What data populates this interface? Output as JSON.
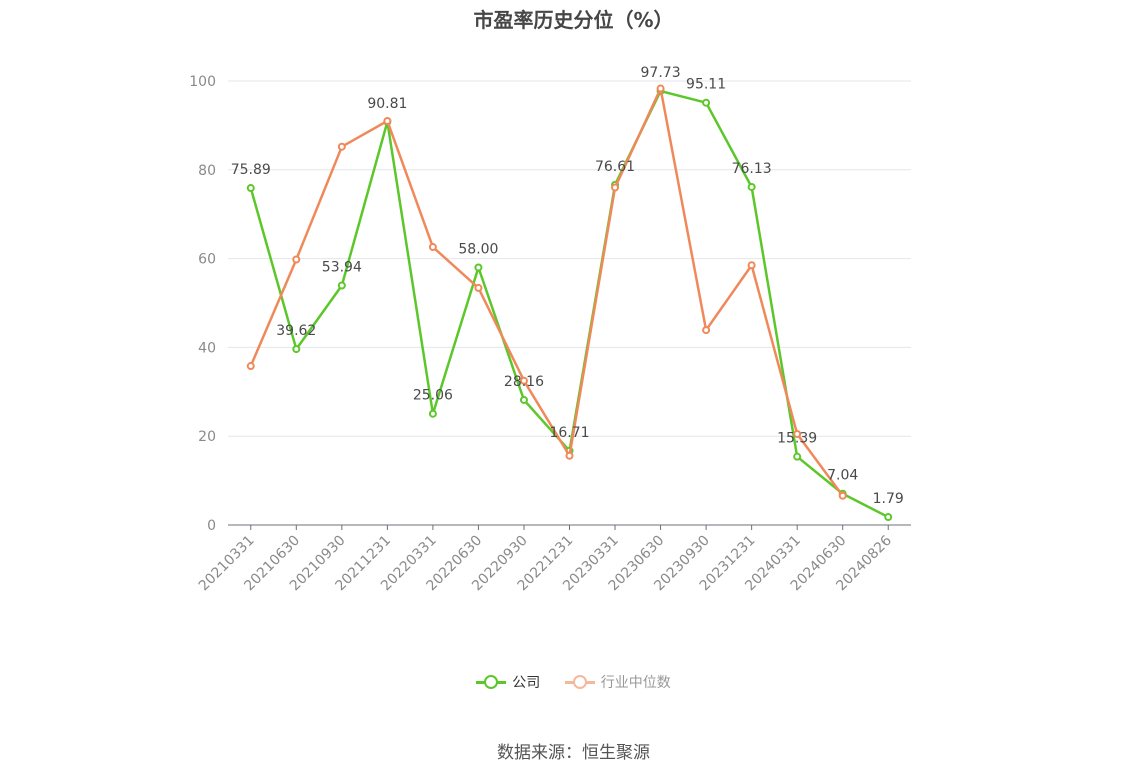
{
  "title": "市盈率历史分位（%）",
  "source": "数据来源：恒生聚源",
  "chart_data": {
    "type": "line",
    "categories": [
      "20210331",
      "20210630",
      "20210930",
      "20211231",
      "20220331",
      "20220630",
      "20220930",
      "20221231",
      "20230331",
      "20230630",
      "20230930",
      "20231231",
      "20240331",
      "20240630",
      "20240826"
    ],
    "ylim": [
      0,
      100
    ],
    "yticks": [
      0,
      20,
      40,
      60,
      80,
      100
    ],
    "grid": true,
    "legend_position": "bottom",
    "series": [
      {
        "name": "公司",
        "color": "#5cc72a",
        "values": [
          75.89,
          39.62,
          53.94,
          90.81,
          25.06,
          58.0,
          28.16,
          16.71,
          76.61,
          97.73,
          95.11,
          76.13,
          15.39,
          7.04,
          1.79
        ],
        "labels": [
          "75.89",
          "39.62",
          "53.94",
          "90.81",
          "25.06",
          "58.00",
          "28.16",
          "16.71",
          "76.61",
          "97.73",
          "95.11",
          "76.13",
          "15.39",
          "7.04",
          "1.79"
        ]
      },
      {
        "name": "行业中位数",
        "color": "#f0895a",
        "values": [
          35.8,
          59.8,
          85.2,
          91.0,
          62.6,
          53.4,
          32.5,
          15.6,
          76.0,
          98.3,
          43.9,
          58.5,
          20.5,
          6.6,
          null
        ]
      }
    ]
  },
  "legend": {
    "items": [
      {
        "label": "公司",
        "color": "#5cc72a"
      },
      {
        "label": "行业中位数",
        "color": "#f5b89c"
      }
    ]
  }
}
